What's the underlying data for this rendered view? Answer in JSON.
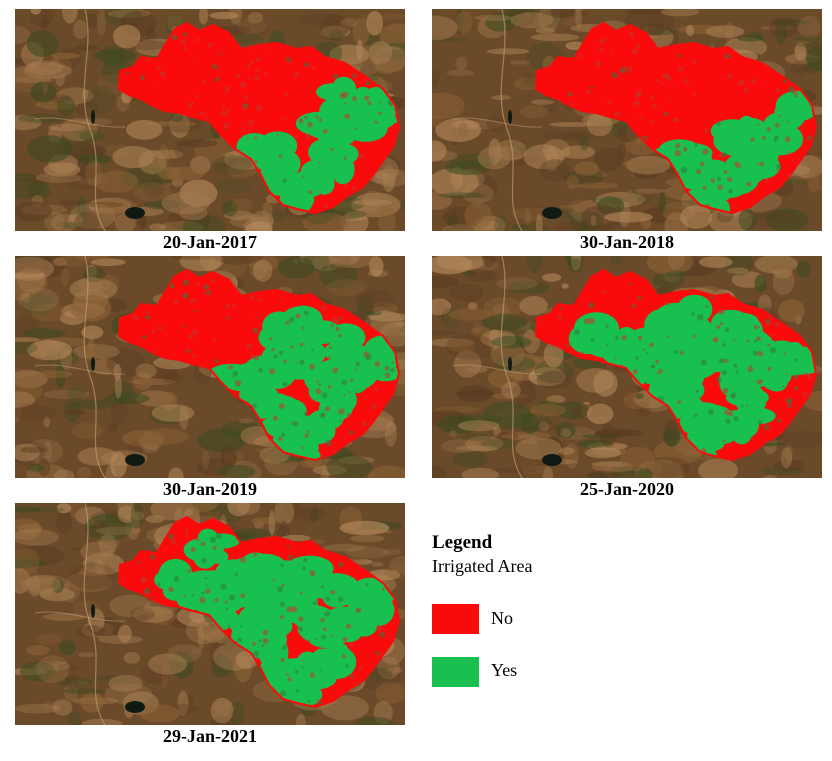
{
  "colors": {
    "no": "#fa0a0a",
    "yes": "#17c04f",
    "terrain_base": "#6b4a2a",
    "terrain_light": "#a27a4f",
    "terrain_green": "#3b4a1f",
    "water": "#0f1a14"
  },
  "panels": [
    {
      "id": "p1",
      "date": "20-Jan-2017",
      "yes_fraction": 0.35
    },
    {
      "id": "p2",
      "date": "30-Jan-2018",
      "yes_fraction": 0.3
    },
    {
      "id": "p3",
      "date": "30-Jan-2019",
      "yes_fraction": 0.55
    },
    {
      "id": "p4",
      "date": "25-Jan-2020",
      "yes_fraction": 0.78
    },
    {
      "id": "p5",
      "date": "29-Jan-2021",
      "yes_fraction": 0.82
    }
  ],
  "legend": {
    "title": "Legend",
    "subtitle": "Irrigated Area",
    "items": [
      {
        "key": "no",
        "label": "No"
      },
      {
        "key": "yes",
        "label": "Yes"
      }
    ]
  }
}
